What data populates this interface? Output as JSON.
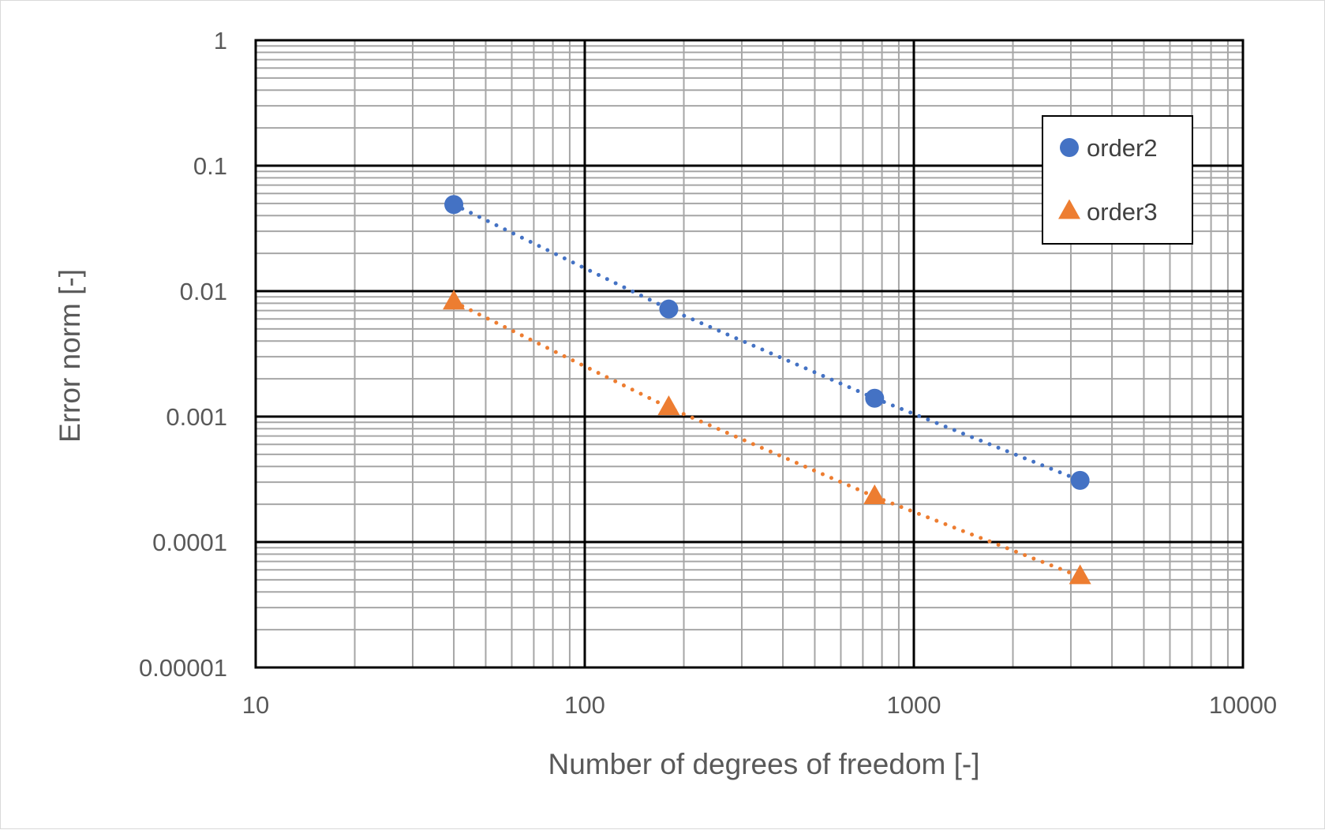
{
  "chart_data": {
    "type": "scatter",
    "xlabel": "Number of degrees of freedom [-]",
    "ylabel": "Error norm [-]",
    "xscale": "log",
    "yscale": "log",
    "xlim": [
      10,
      10000
    ],
    "ylim": [
      1e-05,
      1
    ],
    "xticks": [
      "10",
      "100",
      "1000",
      "10000"
    ],
    "yticks": [
      "1",
      "0.1",
      "0.01",
      "0.001",
      "0.0001",
      "0.00001"
    ],
    "grid": true,
    "legend_position": "top-right",
    "series": [
      {
        "name": "order2",
        "marker": "circle",
        "color": "#4472c4",
        "line": "dotted",
        "x": [
          40,
          180,
          760,
          3200
        ],
        "y": [
          0.049,
          0.0072,
          0.0014,
          0.00031
        ]
      },
      {
        "name": "order3",
        "marker": "triangle",
        "color": "#ed7d31",
        "line": "dotted",
        "x": [
          40,
          180,
          760,
          3200
        ],
        "y": [
          0.0082,
          0.00118,
          0.00023,
          5.3e-05
        ]
      }
    ]
  }
}
